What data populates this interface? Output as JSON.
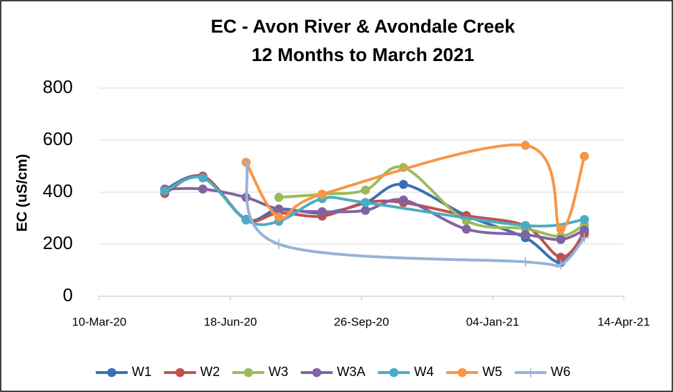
{
  "chart_data": {
    "type": "line",
    "title": [
      "EC - Avon River & Avondale Creek",
      "12 Months to March 2021"
    ],
    "y_label": "EC (uS/cm)",
    "ylim": [
      0,
      800
    ],
    "yticks": [
      0,
      200,
      400,
      600,
      800
    ],
    "grid": true,
    "xlim": [
      "2020-03-10",
      "2021-04-14"
    ],
    "xticks": [
      {
        "value": "2020-03-10",
        "label": "10-Mar-20"
      },
      {
        "value": "2020-06-18",
        "label": "18-Jun-20"
      },
      {
        "value": "2020-09-26",
        "label": "26-Sep-20"
      },
      {
        "value": "2021-01-04",
        "label": "04-Jan-21"
      },
      {
        "value": "2021-04-14",
        "label": "14-Apr-21"
      }
    ],
    "legend": "bottom",
    "series": [
      {
        "name": "W1",
        "color": "#3a6fb6",
        "marker": "circle",
        "x": [
          "2020-04-29",
          "2020-05-28",
          "2020-06-30",
          "2020-07-25",
          "2020-08-27",
          "2020-09-29",
          "2020-10-28",
          "2020-12-15",
          "2021-01-29",
          "2021-02-25",
          "2021-03-15"
        ],
        "values": [
          410,
          460,
          295,
          335,
          320,
          360,
          430,
          310,
          225,
          130,
          250
        ]
      },
      {
        "name": "W2",
        "color": "#c0504d",
        "marker": "circle",
        "x": [
          "2020-04-29",
          "2020-05-28",
          "2020-06-30",
          "2020-07-25",
          "2020-08-27",
          "2020-09-29",
          "2020-10-28",
          "2020-12-15",
          "2021-01-29",
          "2021-02-25",
          "2021-03-15"
        ],
        "values": [
          395,
          462,
          295,
          320,
          308,
          360,
          360,
          310,
          270,
          150,
          240
        ]
      },
      {
        "name": "W3",
        "color": "#9bbb59",
        "marker": "circle",
        "x": [
          "2020-07-25",
          "2020-08-27",
          "2020-09-29",
          "2020-10-28",
          "2020-12-15",
          "2021-01-29",
          "2021-02-25",
          "2021-03-15"
        ],
        "values": [
          380,
          392,
          408,
          495,
          290,
          260,
          230,
          275
        ]
      },
      {
        "name": "W3A",
        "color": "#8064a2",
        "marker": "circle",
        "x": [
          "2020-04-29",
          "2020-05-28",
          "2020-06-30",
          "2020-07-25",
          "2020-08-27",
          "2020-09-29",
          "2020-10-28",
          "2020-12-15",
          "2021-01-29",
          "2021-02-25",
          "2021-03-15"
        ],
        "values": [
          412,
          412,
          380,
          335,
          325,
          330,
          370,
          258,
          237,
          218,
          255
        ]
      },
      {
        "name": "W4",
        "color": "#4bacc6",
        "marker": "circle",
        "x": [
          "2020-04-29",
          "2020-05-28",
          "2020-06-30",
          "2020-07-25",
          "2020-08-27",
          "2020-09-29",
          "2021-01-29",
          "2021-03-15"
        ],
        "values": [
          405,
          455,
          293,
          288,
          375,
          360,
          272,
          295
        ]
      },
      {
        "name": "W5",
        "color": "#f79646",
        "marker": "circle",
        "x": [
          "2020-06-30",
          "2020-07-25",
          "2020-08-27",
          "2021-01-29",
          "2021-02-25",
          "2021-03-15"
        ],
        "values": [
          515,
          305,
          392,
          580,
          258,
          538
        ]
      },
      {
        "name": "W6",
        "color": "#95b3d7",
        "marker": "plus",
        "x": [
          "2020-06-30",
          "2020-07-25",
          "2021-01-29",
          "2021-02-25",
          "2021-03-15"
        ],
        "values": [
          512,
          200,
          132,
          122,
          225
        ]
      }
    ]
  }
}
